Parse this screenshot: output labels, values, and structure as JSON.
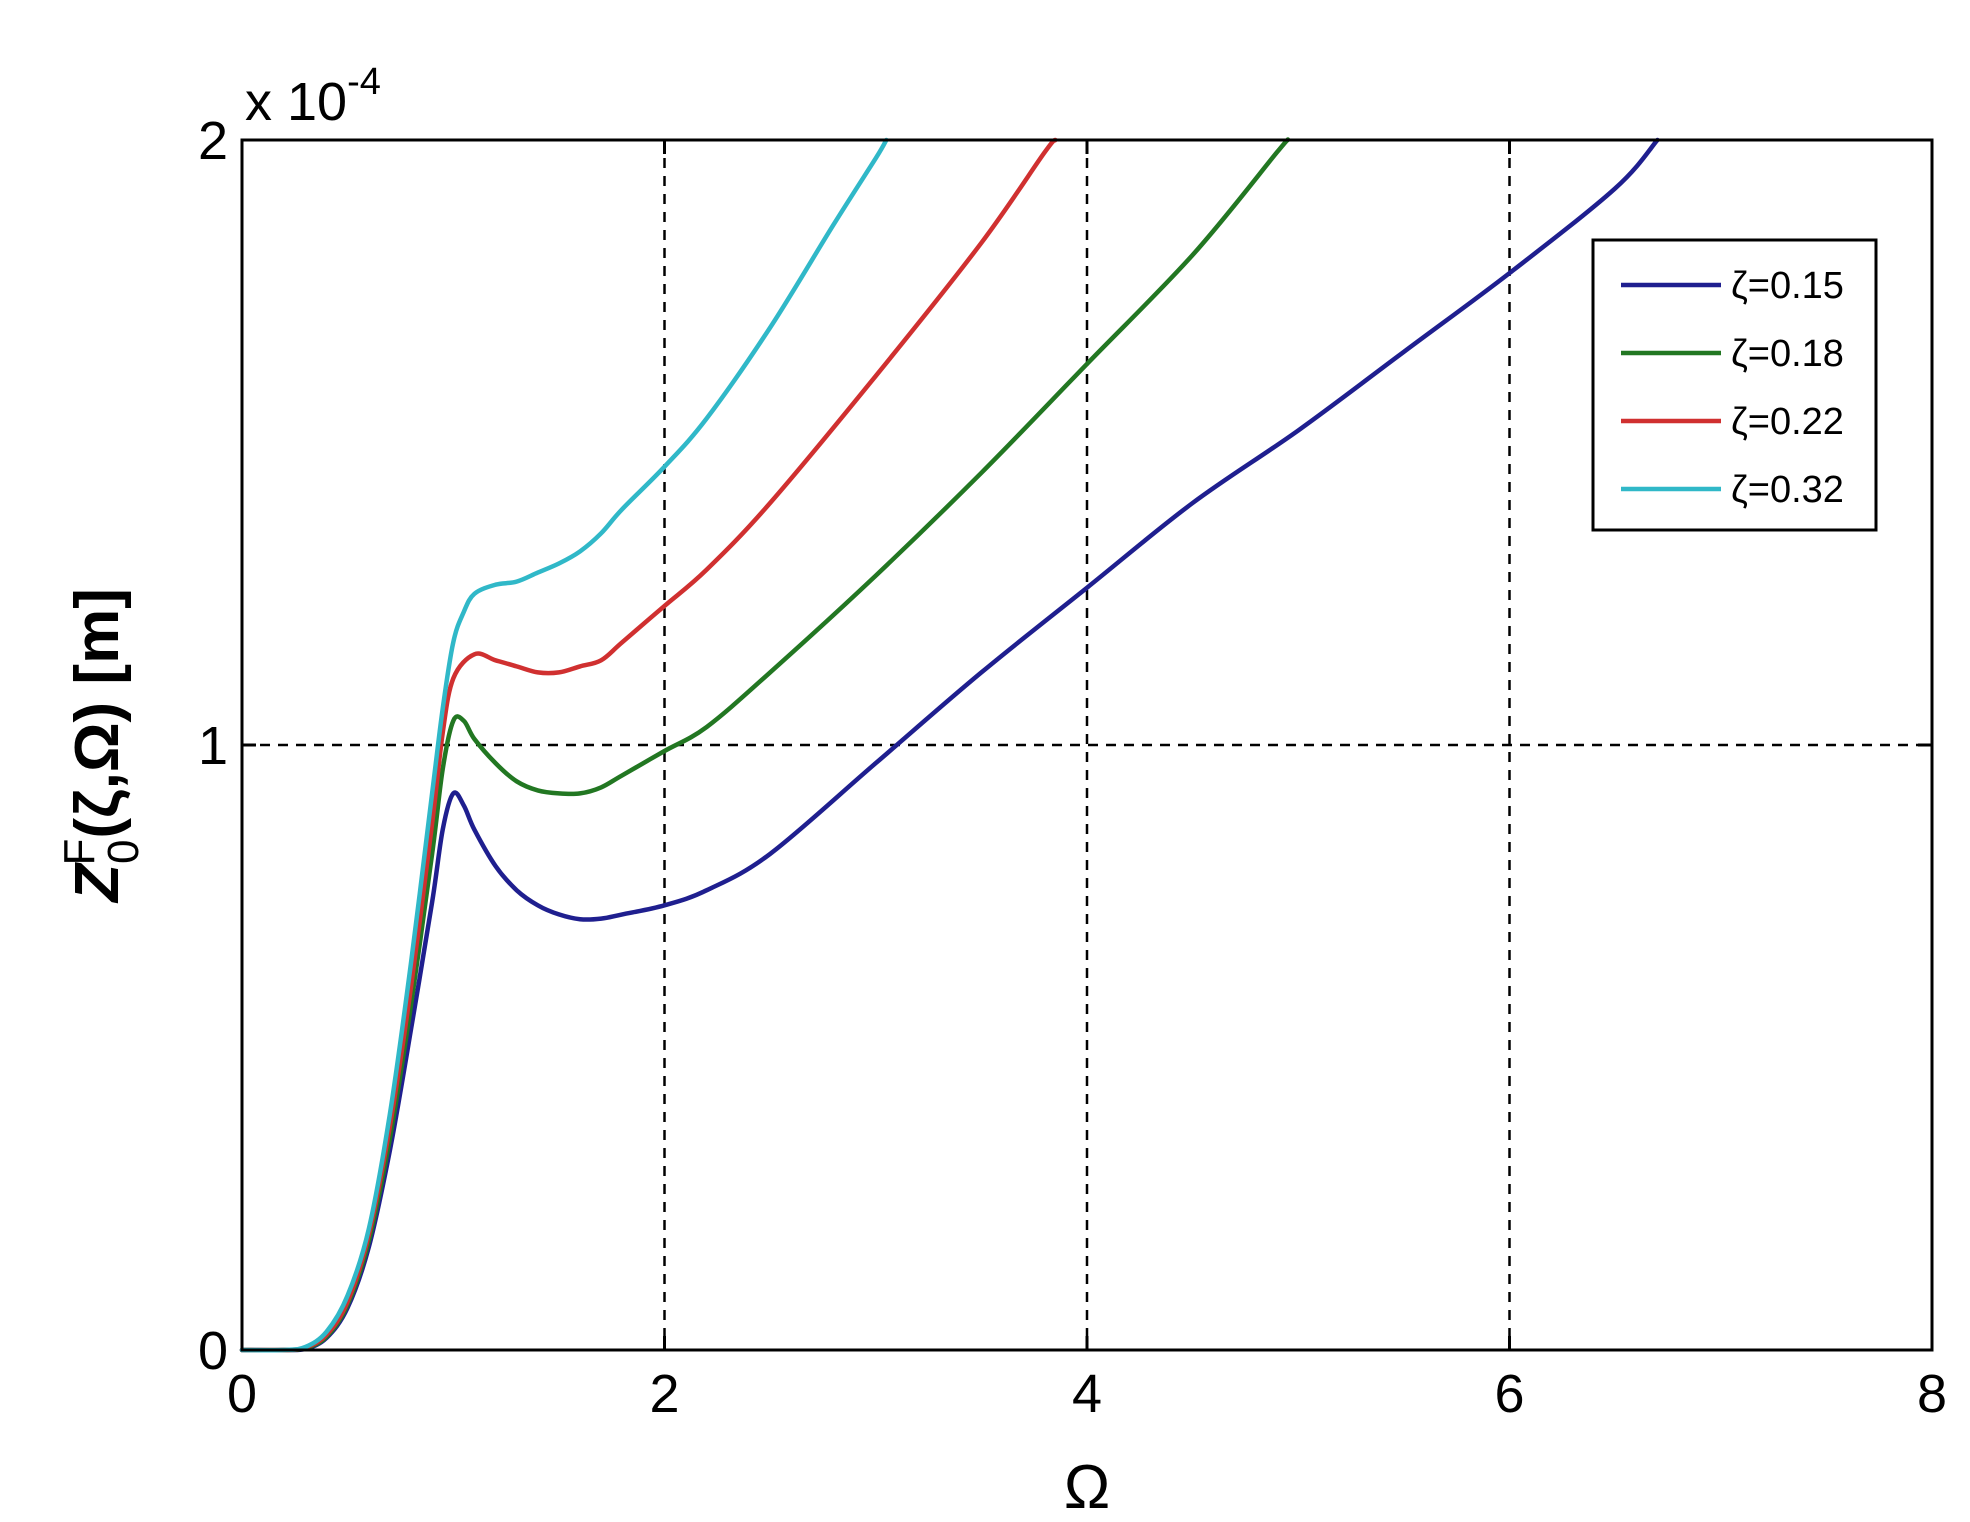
{
  "chart_data": {
    "type": "line",
    "xlabel": "Ω",
    "ylabel_main": "Z",
    "ylabel_sub": "0",
    "ylabel_sup": "F",
    "ylabel_rest": "(ζ,Ω) [m]",
    "y_exponent_base": "x 10",
    "y_exponent_power": "-4",
    "xlim": [
      0,
      8
    ],
    "ylim": [
      0,
      2
    ],
    "x_ticks": [
      0,
      2,
      4,
      6,
      8
    ],
    "y_ticks": [
      0,
      1,
      2
    ],
    "x_tick_labels": [
      "0",
      "2",
      "4",
      "6",
      "8"
    ],
    "y_tick_labels": [
      "0",
      "1",
      "2"
    ],
    "grid": true,
    "legend_position": "top-right",
    "series": [
      {
        "name": "ζ=0.15",
        "color": "#1f1f8f",
        "points": [
          [
            0,
            0
          ],
          [
            0.2,
            0
          ],
          [
            0.3,
            0.002
          ],
          [
            0.4,
            0.02
          ],
          [
            0.5,
            0.07
          ],
          [
            0.6,
            0.17
          ],
          [
            0.7,
            0.33
          ],
          [
            0.8,
            0.53
          ],
          [
            0.9,
            0.74
          ],
          [
            0.95,
            0.86
          ],
          [
            1.0,
            0.92
          ],
          [
            1.05,
            0.9
          ],
          [
            1.1,
            0.86
          ],
          [
            1.2,
            0.8
          ],
          [
            1.3,
            0.76
          ],
          [
            1.4,
            0.735
          ],
          [
            1.5,
            0.72
          ],
          [
            1.6,
            0.712
          ],
          [
            1.7,
            0.713
          ],
          [
            1.8,
            0.72
          ],
          [
            2.0,
            0.735
          ],
          [
            2.2,
            0.76
          ],
          [
            2.5,
            0.82
          ],
          [
            3.0,
            0.97
          ],
          [
            3.5,
            1.12
          ],
          [
            4.0,
            1.26
          ],
          [
            4.5,
            1.4
          ],
          [
            5.0,
            1.52
          ],
          [
            5.5,
            1.65
          ],
          [
            6.0,
            1.78
          ],
          [
            6.5,
            1.92
          ],
          [
            6.7,
            2.0
          ]
        ]
      },
      {
        "name": "ζ=0.18",
        "color": "#227722",
        "points": [
          [
            0,
            0
          ],
          [
            0.2,
            0
          ],
          [
            0.3,
            0.003
          ],
          [
            0.4,
            0.022
          ],
          [
            0.5,
            0.075
          ],
          [
            0.6,
            0.18
          ],
          [
            0.7,
            0.35
          ],
          [
            0.8,
            0.57
          ],
          [
            0.9,
            0.82
          ],
          [
            0.95,
            0.96
          ],
          [
            1.0,
            1.04
          ],
          [
            1.05,
            1.04
          ],
          [
            1.1,
            1.01
          ],
          [
            1.2,
            0.97
          ],
          [
            1.3,
            0.94
          ],
          [
            1.4,
            0.925
          ],
          [
            1.5,
            0.92
          ],
          [
            1.6,
            0.92
          ],
          [
            1.7,
            0.93
          ],
          [
            1.8,
            0.95
          ],
          [
            2.0,
            0.99
          ],
          [
            2.2,
            1.03
          ],
          [
            2.5,
            1.12
          ],
          [
            3.0,
            1.28
          ],
          [
            3.5,
            1.45
          ],
          [
            4.0,
            1.63
          ],
          [
            4.5,
            1.81
          ],
          [
            4.9,
            1.98
          ],
          [
            4.95,
            2.0
          ]
        ]
      },
      {
        "name": "ζ=0.22",
        "color": "#d03030",
        "points": [
          [
            0,
            0
          ],
          [
            0.2,
            0
          ],
          [
            0.3,
            0.004
          ],
          [
            0.4,
            0.025
          ],
          [
            0.5,
            0.08
          ],
          [
            0.6,
            0.19
          ],
          [
            0.7,
            0.37
          ],
          [
            0.8,
            0.6
          ],
          [
            0.9,
            0.87
          ],
          [
            0.95,
            1.02
          ],
          [
            1.0,
            1.11
          ],
          [
            1.1,
            1.15
          ],
          [
            1.2,
            1.14
          ],
          [
            1.3,
            1.13
          ],
          [
            1.4,
            1.12
          ],
          [
            1.5,
            1.12
          ],
          [
            1.6,
            1.13
          ],
          [
            1.7,
            1.14
          ],
          [
            1.8,
            1.17
          ],
          [
            2.0,
            1.23
          ],
          [
            2.2,
            1.29
          ],
          [
            2.5,
            1.4
          ],
          [
            3.0,
            1.61
          ],
          [
            3.5,
            1.83
          ],
          [
            3.8,
            1.98
          ],
          [
            3.85,
            2.0
          ]
        ]
      },
      {
        "name": "ζ=0.32",
        "color": "#30b8c8",
        "points": [
          [
            0,
            0
          ],
          [
            0.2,
            0
          ],
          [
            0.3,
            0.005
          ],
          [
            0.4,
            0.03
          ],
          [
            0.5,
            0.09
          ],
          [
            0.6,
            0.2
          ],
          [
            0.7,
            0.39
          ],
          [
            0.8,
            0.64
          ],
          [
            0.9,
            0.92
          ],
          [
            0.95,
            1.06
          ],
          [
            1.0,
            1.17
          ],
          [
            1.05,
            1.22
          ],
          [
            1.1,
            1.25
          ],
          [
            1.2,
            1.265
          ],
          [
            1.3,
            1.27
          ],
          [
            1.4,
            1.285
          ],
          [
            1.5,
            1.3
          ],
          [
            1.6,
            1.32
          ],
          [
            1.7,
            1.35
          ],
          [
            1.8,
            1.39
          ],
          [
            2.0,
            1.46
          ],
          [
            2.2,
            1.54
          ],
          [
            2.5,
            1.69
          ],
          [
            2.8,
            1.86
          ],
          [
            3.0,
            1.97
          ],
          [
            3.05,
            2.0
          ]
        ]
      }
    ]
  }
}
